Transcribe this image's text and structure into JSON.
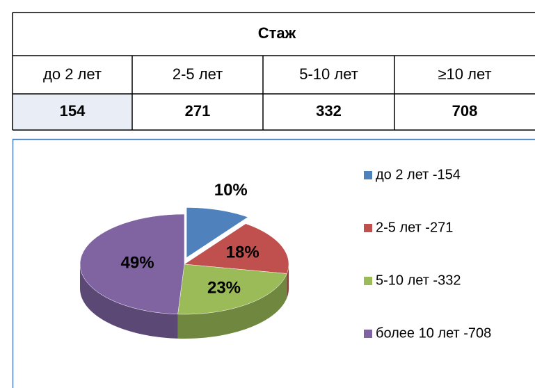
{
  "table": {
    "title": "Стаж",
    "columns": [
      "до 2 лет",
      "2-5 лет",
      "5-10 лет",
      "≥10 лет"
    ],
    "values": [
      "154",
      "271",
      "332",
      "708"
    ]
  },
  "chart_data": {
    "type": "pie",
    "categories": [
      "до 2 лет -154",
      "2-5 лет -271",
      "5-10 лет -332",
      "более 10 лет -708"
    ],
    "values": [
      10,
      18,
      23,
      49
    ],
    "value_labels": [
      "10%",
      "18%",
      "23%",
      "49%"
    ],
    "colors": [
      "#4f81bd",
      "#c0504d",
      "#9bbb59",
      "#8064a2"
    ],
    "legend": "right"
  }
}
